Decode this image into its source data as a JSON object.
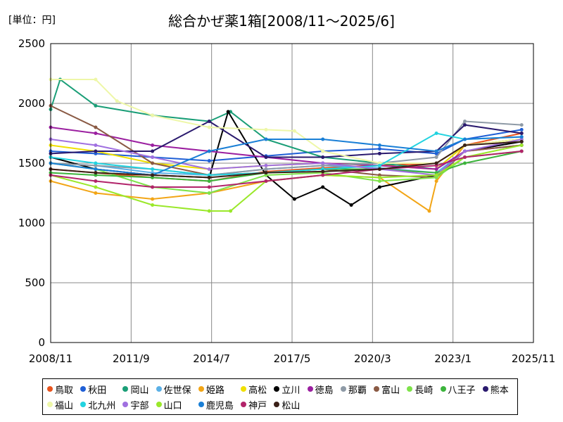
{
  "unit_label": "[単位：円]",
  "chart_data": {
    "type": "line",
    "title": "総合かぜ薬1箱[2008/11～2025/6]",
    "xlabel": "",
    "ylabel": "",
    "x_range": [
      "2008/11",
      "2025/11"
    ],
    "x_ticks": [
      "2008/11",
      "2011/9",
      "2014/7",
      "2017/5",
      "2020/3",
      "2023/1",
      "2025/11"
    ],
    "ylim": [
      0,
      2500
    ],
    "y_ticks": [
      0,
      500,
      1000,
      1500,
      2000,
      2500
    ],
    "grid": true,
    "legend_position": "bottom",
    "series": [
      {
        "name": "鳥取",
        "color": "#e8541e",
        "x": [
          "2008/11",
          "2010/6",
          "2012/6",
          "2014/6",
          "2016/6",
          "2018/6",
          "2020/6",
          "2022/6",
          "2023/6",
          "2025/6"
        ],
        "values": [
          1450,
          1420,
          1380,
          1350,
          1430,
          1460,
          1480,
          1500,
          1650,
          1750
        ]
      },
      {
        "name": "秋田",
        "color": "#1f5fd6",
        "x": [
          "2008/11",
          "2010/6",
          "2012/6",
          "2014/6",
          "2016/6",
          "2018/6",
          "2020/6",
          "2022/6",
          "2023/6",
          "2025/6"
        ],
        "values": [
          1600,
          1580,
          1550,
          1520,
          1560,
          1600,
          1620,
          1580,
          1700,
          1780
        ]
      },
      {
        "name": "岡山",
        "color": "#1a9e77",
        "x": [
          "2008/11",
          "2009/3",
          "2010/6",
          "2012/6",
          "2014/6",
          "2015/3",
          "2016/6",
          "2018/6",
          "2020/6",
          "2022/6",
          "2023/6",
          "2025/6"
        ],
        "values": [
          1950,
          2200,
          1980,
          1900,
          1850,
          1930,
          1700,
          1550,
          1500,
          1450,
          1650,
          1700
        ]
      },
      {
        "name": "佐世保",
        "color": "#5bb0e6",
        "x": [
          "2008/11",
          "2010/6",
          "2012/6",
          "2014/6",
          "2016/6",
          "2018/6",
          "2020/6",
          "2022/6",
          "2023/6",
          "2025/6"
        ],
        "values": [
          1500,
          1480,
          1420,
          1400,
          1450,
          1480,
          1460,
          1420,
          1600,
          1680
        ]
      },
      {
        "name": "姫路",
        "color": "#f2a516",
        "x": [
          "2008/11",
          "2010/6",
          "2012/6",
          "2014/6",
          "2016/6",
          "2018/6",
          "2020/6",
          "2022/3",
          "2022/6",
          "2023/6",
          "2025/6"
        ],
        "values": [
          1350,
          1250,
          1200,
          1250,
          1350,
          1400,
          1380,
          1100,
          1350,
          1650,
          1700
        ]
      },
      {
        "name": "高松",
        "color": "#f0e000",
        "x": [
          "2008/11",
          "2010/6",
          "2012/6",
          "2014/6",
          "2016/6",
          "2018/6",
          "2020/6",
          "2022/6",
          "2023/6",
          "2025/6"
        ],
        "values": [
          1650,
          1600,
          1500,
          1450,
          1480,
          1500,
          1480,
          1450,
          1650,
          1700
        ]
      },
      {
        "name": "立川",
        "color": "#000000",
        "x": [
          "2008/11",
          "2010/6",
          "2012/6",
          "2014/6",
          "2015/2",
          "2016/6",
          "2017/6",
          "2018/6",
          "2019/6",
          "2020/6",
          "2022/6",
          "2023/6",
          "2025/6"
        ],
        "values": [
          1550,
          1450,
          1400,
          1380,
          1930,
          1400,
          1200,
          1300,
          1150,
          1300,
          1400,
          1600,
          1680
        ]
      },
      {
        "name": "徳島",
        "color": "#9b1fa0",
        "x": [
          "2008/11",
          "2010/6",
          "2012/6",
          "2014/6",
          "2016/6",
          "2018/6",
          "2020/6",
          "2022/6",
          "2023/6",
          "2025/6"
        ],
        "values": [
          1800,
          1750,
          1650,
          1600,
          1550,
          1500,
          1480,
          1450,
          1600,
          1650
        ]
      },
      {
        "name": "那覇",
        "color": "#8e9aa6",
        "x": [
          "2008/11",
          "2010/6",
          "2012/6",
          "2014/6",
          "2016/6",
          "2018/6",
          "2020/6",
          "2022/6",
          "2023/6",
          "2025/6"
        ],
        "values": [
          1500,
          1480,
          1450,
          1400,
          1450,
          1480,
          1500,
          1550,
          1850,
          1820
        ]
      },
      {
        "name": "富山",
        "color": "#8a5a44",
        "x": [
          "2008/11",
          "2010/6",
          "2012/6",
          "2014/6",
          "2016/6",
          "2018/6",
          "2020/6",
          "2022/6",
          "2023/6",
          "2025/6"
        ],
        "values": [
          1980,
          1800,
          1500,
          1400,
          1420,
          1450,
          1400,
          1380,
          1600,
          1650
        ]
      },
      {
        "name": "長崎",
        "color": "#7ee34a",
        "x": [
          "2008/11",
          "2010/6",
          "2012/6",
          "2014/6",
          "2016/6",
          "2018/6",
          "2020/6",
          "2022/6",
          "2023/6",
          "2025/6"
        ],
        "values": [
          1500,
          1450,
          1300,
          1250,
          1400,
          1420,
          1350,
          1380,
          1550,
          1600
        ]
      },
      {
        "name": "八王子",
        "color": "#3cb43c",
        "x": [
          "2008/11",
          "2010/6",
          "2012/6",
          "2014/6",
          "2016/6",
          "2018/6",
          "2020/6",
          "2022/6",
          "2023/6",
          "2025/6"
        ],
        "values": [
          1420,
          1400,
          1380,
          1350,
          1420,
          1450,
          1450,
          1420,
          1500,
          1600
        ]
      },
      {
        "name": "熊本",
        "color": "#2a1a6e",
        "x": [
          "2008/11",
          "2010/6",
          "2012/6",
          "2014/6",
          "2016/6",
          "2018/6",
          "2020/6",
          "2022/6",
          "2023/6",
          "2025/6"
        ],
        "values": [
          1580,
          1600,
          1600,
          1850,
          1550,
          1550,
          1580,
          1600,
          1820,
          1750
        ]
      },
      {
        "name": "福山",
        "color": "#eef7a8",
        "x": [
          "2008/11",
          "2010/6",
          "2011/3",
          "2012/6",
          "2014/6",
          "2016/6",
          "2017/6",
          "2018/6",
          "2020/6",
          "2022/6",
          "2023/6",
          "2025/6"
        ],
        "values": [
          2200,
          2200,
          2020,
          1900,
          1800,
          1780,
          1770,
          1600,
          1500,
          1500,
          1650,
          1700
        ]
      },
      {
        "name": "北九州",
        "color": "#22d3e0",
        "x": [
          "2008/11",
          "2010/6",
          "2012/6",
          "2014/6",
          "2016/6",
          "2018/6",
          "2020/6",
          "2022/6",
          "2023/6",
          "2025/6"
        ],
        "values": [
          1550,
          1500,
          1450,
          1400,
          1420,
          1450,
          1480,
          1750,
          1700,
          1720
        ]
      },
      {
        "name": "宇部",
        "color": "#a070e0",
        "x": [
          "2008/11",
          "2010/6",
          "2012/6",
          "2014/6",
          "2016/6",
          "2018/6",
          "2020/6",
          "2022/6",
          "2023/6",
          "2025/6"
        ],
        "values": [
          1700,
          1650,
          1550,
          1450,
          1480,
          1500,
          1450,
          1400,
          1600,
          1700
        ]
      },
      {
        "name": "山口",
        "color": "#9ae82a",
        "x": [
          "2008/11",
          "2010/6",
          "2012/6",
          "2014/6",
          "2015/3",
          "2016/6",
          "2018/6",
          "2020/6",
          "2022/6",
          "2023/6",
          "2025/6"
        ],
        "values": [
          1400,
          1300,
          1150,
          1100,
          1100,
          1350,
          1400,
          1380,
          1400,
          1550,
          1650
        ]
      },
      {
        "name": "鹿児島",
        "color": "#1a7fd6",
        "x": [
          "2008/11",
          "2010/6",
          "2012/6",
          "2014/6",
          "2016/6",
          "2018/6",
          "2020/6",
          "2022/6",
          "2023/6",
          "2025/6"
        ],
        "values": [
          1500,
          1450,
          1400,
          1600,
          1700,
          1700,
          1650,
          1600,
          1700,
          1720
        ]
      },
      {
        "name": "神戸",
        "color": "#b2246a",
        "x": [
          "2008/11",
          "2010/6",
          "2012/6",
          "2014/6",
          "2016/6",
          "2018/6",
          "2020/6",
          "2022/6",
          "2023/6",
          "2025/6"
        ],
        "values": [
          1400,
          1350,
          1300,
          1300,
          1350,
          1400,
          1450,
          1480,
          1550,
          1600
        ]
      },
      {
        "name": "松山",
        "color": "#3a2018",
        "x": [
          "2008/11",
          "2010/6",
          "2012/6",
          "2014/6",
          "2016/6",
          "2018/6",
          "2020/6",
          "2022/6",
          "2023/6",
          "2025/6"
        ],
        "values": [
          1450,
          1420,
          1400,
          1380,
          1420,
          1430,
          1450,
          1500,
          1650,
          1680
        ]
      }
    ]
  }
}
